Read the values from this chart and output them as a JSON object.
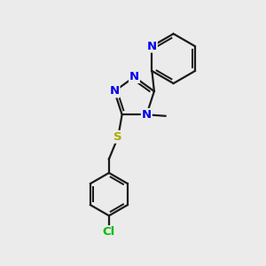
{
  "bg_color": "#ebebeb",
  "bond_color": "#1a1a1a",
  "bond_width": 1.6,
  "dbo": 0.07,
  "atom_colors": {
    "N": "#0000ee",
    "S": "#aaaa00",
    "Cl": "#00bb00",
    "C": "#1a1a1a"
  },
  "font_size": 9.5
}
